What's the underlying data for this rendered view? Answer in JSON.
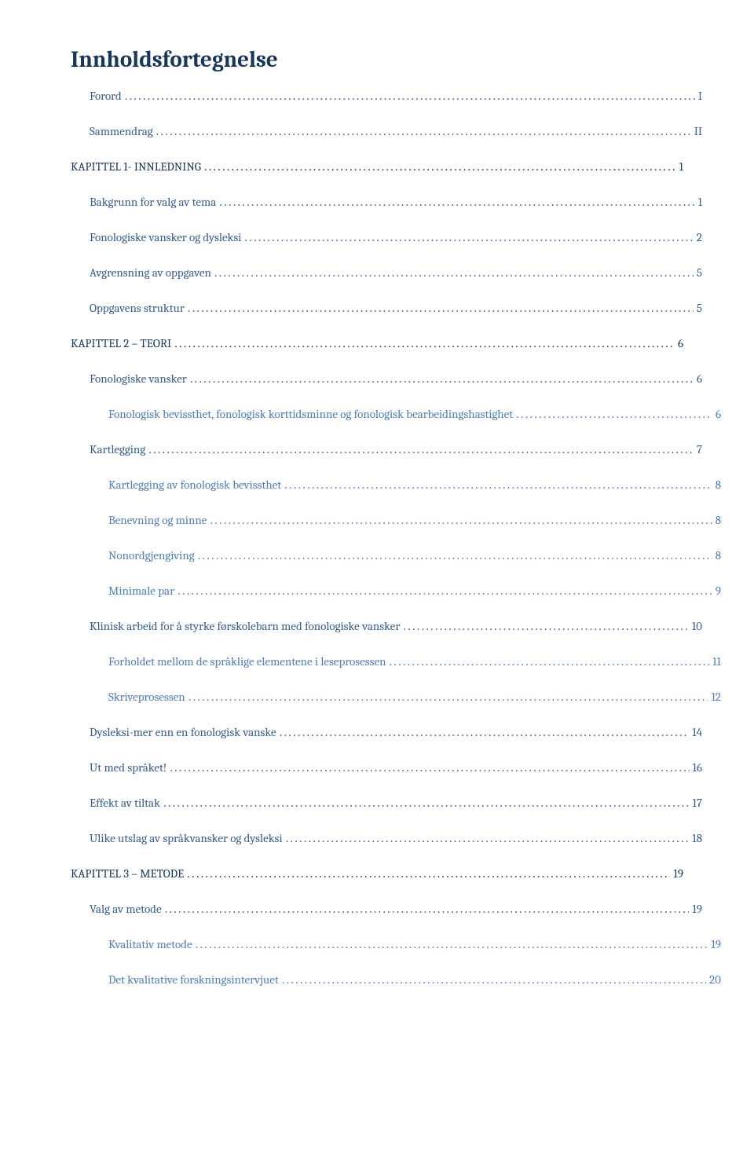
{
  "title": "Innholdsfortegnelse",
  "colors": {
    "level1": "#17365d",
    "level2": "#365f91",
    "level3": "#4f81bd",
    "background": "#ffffff"
  },
  "entries": [
    {
      "level": 2,
      "label": "Forord",
      "page": "I"
    },
    {
      "level": 2,
      "label": "Sammendrag",
      "page": "II"
    },
    {
      "level": 1,
      "label": "KAPITTEL 1- INNLEDNING",
      "page": "1"
    },
    {
      "level": 2,
      "label": "Bakgrunn for valg av tema",
      "page": "1"
    },
    {
      "level": 2,
      "label": "Fonologiske vansker og dysleksi",
      "page": "2"
    },
    {
      "level": 2,
      "label": "Avgrensning av oppgaven",
      "page": "5"
    },
    {
      "level": 2,
      "label": "Oppgavens struktur",
      "page": "5"
    },
    {
      "level": 1,
      "label": "KAPITTEL 2 – TEORI",
      "page": "6"
    },
    {
      "level": 2,
      "label": "Fonologiske vansker",
      "page": "6"
    },
    {
      "level": 3,
      "label": "Fonologisk bevissthet, fonologisk korttidsminne og fonologisk bearbeidingshastighet",
      "page": "6"
    },
    {
      "level": 2,
      "label": "Kartlegging",
      "page": "7"
    },
    {
      "level": 3,
      "label": "Kartlegging av fonologisk bevissthet",
      "page": "8"
    },
    {
      "level": 3,
      "label": "Benevning og minne",
      "page": "8"
    },
    {
      "level": 3,
      "label": "Nonordgjengiving",
      "page": "8"
    },
    {
      "level": 3,
      "label": "Minimale par",
      "page": "9"
    },
    {
      "level": 2,
      "label": "Klinisk arbeid for å styrke førskolebarn med fonologiske vansker",
      "page": "10"
    },
    {
      "level": 3,
      "label": "Forholdet mellom de språklige elementene i leseprosessen",
      "page": "11"
    },
    {
      "level": 3,
      "label": "Skriveprosessen",
      "page": "12"
    },
    {
      "level": 2,
      "label": "Dysleksi-mer enn en fonologisk vanske",
      "page": "14"
    },
    {
      "level": 2,
      "label": "Ut med språket!",
      "page": "16"
    },
    {
      "level": 2,
      "label": "Effekt av tiltak",
      "page": "17"
    },
    {
      "level": 2,
      "label": "Ulike utslag av språkvansker og dysleksi",
      "page": "18"
    },
    {
      "level": 1,
      "label": "KAPITTEL 3 – METODE",
      "page": "19"
    },
    {
      "level": 2,
      "label": "Valg av metode",
      "page": "19"
    },
    {
      "level": 3,
      "label": "Kvalitativ metode",
      "page": "19"
    },
    {
      "level": 3,
      "label": "Det kvalitative forskningsintervjuet",
      "page": "20"
    }
  ]
}
